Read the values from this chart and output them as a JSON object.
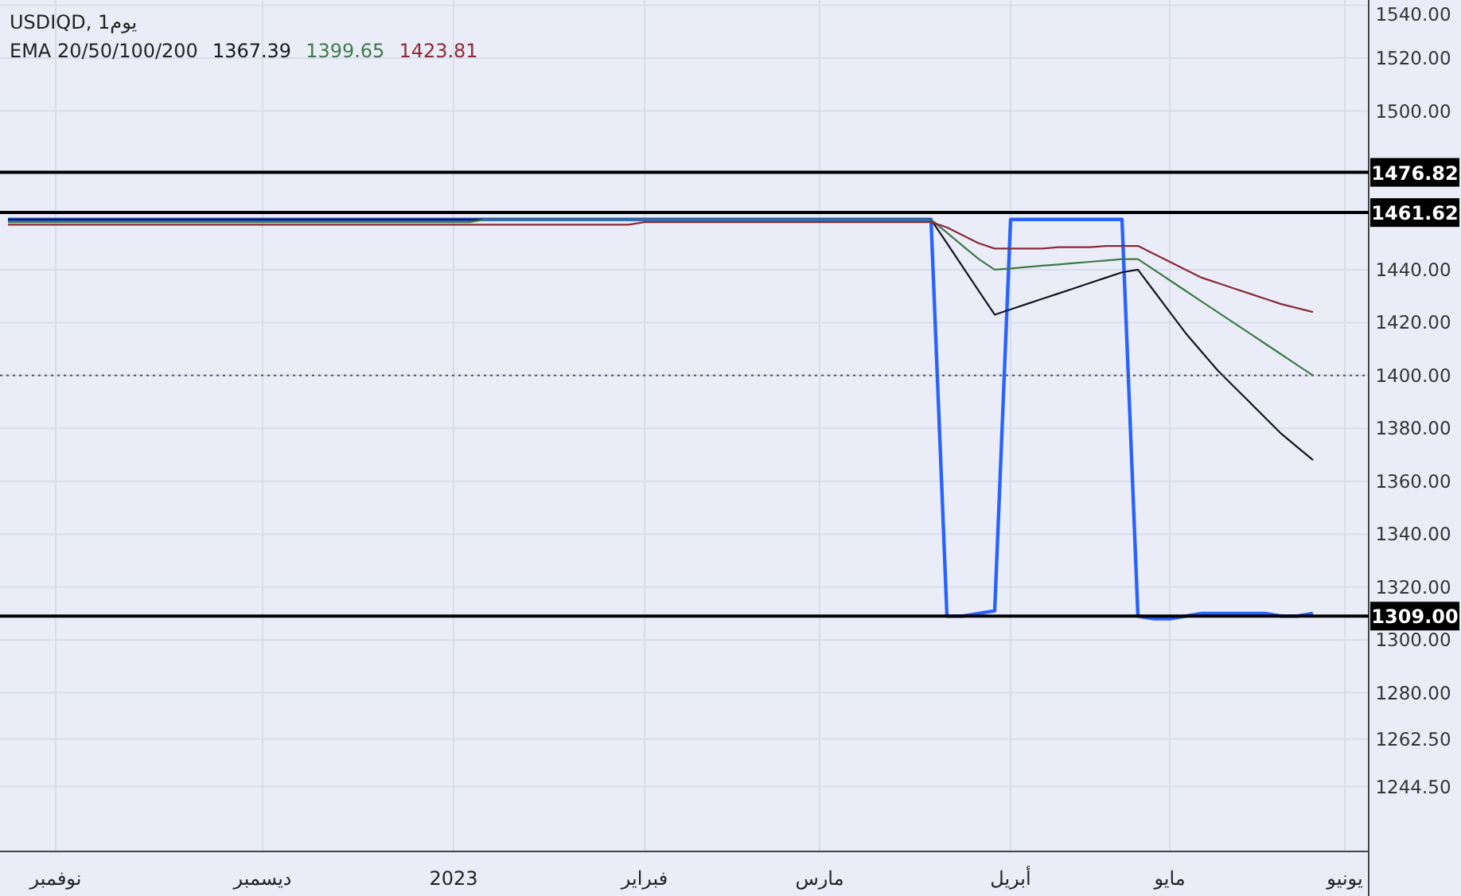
{
  "chart_data": {
    "type": "line",
    "title": "USDIQD, 1يوم",
    "legend_title": "EMA 20/50/100/200",
    "grid": true,
    "categories": [
      null,
      null,
      null,
      "نوفمبر",
      null,
      null,
      null,
      null,
      null,
      null,
      null,
      null,
      null,
      null,
      null,
      null,
      "ديسمبر",
      null,
      null,
      null,
      null,
      null,
      null,
      null,
      null,
      null,
      null,
      null,
      "2023",
      null,
      null,
      null,
      null,
      null,
      null,
      null,
      null,
      null,
      null,
      null,
      "فبراير",
      null,
      null,
      null,
      null,
      null,
      null,
      null,
      null,
      null,
      null,
      "مارس",
      null,
      null,
      null,
      null,
      null,
      null,
      null,
      null,
      null,
      null,
      null,
      "أبريل",
      null,
      null,
      null,
      null,
      null,
      null,
      null,
      null,
      null,
      "مايو",
      null,
      null,
      null,
      null,
      null,
      null,
      null,
      null,
      null,
      null,
      "يونيو",
      null
    ],
    "series": [
      {
        "color": "#2962ff",
        "values": [
          1459,
          1459,
          1459,
          1459,
          1459,
          1459,
          1459,
          1459,
          1459,
          1459,
          1459,
          1459,
          1459,
          1459,
          1459,
          1459,
          1459,
          1459,
          1459,
          1459,
          1459,
          1459,
          1459,
          1459,
          1459,
          1459,
          1459,
          1459,
          1459,
          1459,
          1459,
          1459,
          1459,
          1459,
          1459,
          1459,
          1459,
          1459,
          1459,
          1459,
          1459,
          1459,
          1459,
          1459,
          1459,
          1459,
          1459,
          1459,
          1459,
          1459,
          1459,
          1459,
          1459,
          1459,
          1459,
          1459,
          1459,
          1459,
          1459,
          1309,
          1309,
          1310,
          1311,
          1459,
          1459,
          1459,
          1459,
          1459,
          1459,
          1459,
          1459,
          1309,
          1308,
          1308,
          1309,
          1310,
          1310,
          1310,
          1310,
          1310,
          1309,
          1309,
          1310,
          null,
          null,
          null
        ]
      },
      {
        "name": "1367.39",
        "color": "#131722",
        "values": [
          1459,
          1459,
          1459,
          1459,
          1459,
          1459,
          1459,
          1459,
          1459,
          1459,
          1459,
          1459,
          1459,
          1459,
          1459,
          1459,
          1459,
          1459,
          1459,
          1459,
          1459,
          1459,
          1459,
          1459,
          1459,
          1459,
          1459,
          1459,
          1459,
          1459,
          1459,
          1459,
          1459,
          1459,
          1459,
          1459,
          1459,
          1459,
          1459,
          1459,
          1459,
          1459,
          1459,
          1459,
          1459,
          1459,
          1459,
          1459,
          1459,
          1459,
          1459,
          1459,
          1459,
          1459,
          1459,
          1459,
          1459,
          1459,
          1459,
          1450,
          1441,
          1432,
          1423,
          1425,
          1427,
          1429,
          1431,
          1433,
          1435,
          1437,
          1439,
          1440,
          1432,
          1424,
          1416,
          1409,
          1402,
          1396,
          1390,
          1384,
          1378,
          1373,
          1368,
          null,
          null,
          null
        ]
      },
      {
        "name": "1399.65",
        "color": "#3e7a48",
        "values": [
          1458,
          1458,
          1458,
          1458,
          1458,
          1458,
          1458,
          1458,
          1458,
          1458,
          1458,
          1458,
          1458,
          1458,
          1458,
          1458,
          1458,
          1458,
          1458,
          1458,
          1458,
          1458,
          1458,
          1458,
          1458,
          1458,
          1458,
          1458,
          1458,
          1458,
          1459,
          1459,
          1459,
          1459,
          1459,
          1459,
          1459,
          1459,
          1459,
          1459,
          1459,
          1459,
          1459,
          1459,
          1459,
          1459,
          1459,
          1459,
          1459,
          1459,
          1459,
          1459,
          1459,
          1459,
          1459,
          1459,
          1459,
          1459,
          1459,
          1454,
          1449,
          1444,
          1440,
          1440.5,
          1441,
          1441.5,
          1442,
          1442.5,
          1443,
          1443.5,
          1444,
          1444,
          1440,
          1436,
          1432,
          1428,
          1424,
          1420,
          1416,
          1412,
          1408,
          1404,
          1400,
          null,
          null,
          null
        ]
      },
      {
        "name": "1423.81",
        "color": "#8b2a35",
        "values": [
          1457,
          1457,
          1457,
          1457,
          1457,
          1457,
          1457,
          1457,
          1457,
          1457,
          1457,
          1457,
          1457,
          1457,
          1457,
          1457,
          1457,
          1457,
          1457,
          1457,
          1457,
          1457,
          1457,
          1457,
          1457,
          1457,
          1457,
          1457,
          1457,
          1457,
          1457,
          1457,
          1457,
          1457,
          1457,
          1457,
          1457,
          1457,
          1457,
          1457,
          1458,
          1458,
          1458,
          1458,
          1458,
          1458,
          1458,
          1458,
          1458,
          1458,
          1458,
          1458,
          1458,
          1458,
          1458,
          1458,
          1458,
          1458,
          1458,
          1456,
          1453,
          1450,
          1448,
          1448,
          1448,
          1448,
          1448.5,
          1448.5,
          1448.5,
          1449,
          1449,
          1449,
          1446,
          1443,
          1440,
          1437,
          1435,
          1433,
          1431,
          1429,
          1427,
          1425.5,
          1424,
          null,
          null,
          null
        ]
      }
    ],
    "ylim": [
      1220,
      1542
    ],
    "yticks": [
      {
        "value": 1540,
        "label": "1540.00"
      },
      {
        "value": 1520,
        "label": "1520.00"
      },
      {
        "value": 1500,
        "label": "1500.00"
      },
      {
        "value": 1440,
        "label": "1440.00"
      },
      {
        "value": 1420,
        "label": "1420.00"
      },
      {
        "value": 1400,
        "label": "1400.00"
      },
      {
        "value": 1380,
        "label": "1380.00"
      },
      {
        "value": 1360,
        "label": "1360.00"
      },
      {
        "value": 1340,
        "label": "1340.00"
      },
      {
        "value": 1320,
        "label": "1320.00"
      },
      {
        "value": 1300,
        "label": "1300.00"
      },
      {
        "value": 1280,
        "label": "1280.00"
      },
      {
        "value": 1262.5,
        "label": "1262.50"
      },
      {
        "value": 1244.5,
        "label": "1244.50"
      }
    ],
    "ref_lines": [
      {
        "axis": "y",
        "value": 1476.82,
        "label": "1476.82",
        "color": "#000000"
      },
      {
        "axis": "y",
        "value": 1461.62,
        "label": "1461.62",
        "color": "#000000"
      },
      {
        "axis": "y",
        "value": 1309,
        "label": "1309.00",
        "color": "#000000"
      },
      {
        "axis": "y",
        "value": 1400,
        "label": null,
        "color": "#555555",
        "line_style": "dotted"
      }
    ]
  }
}
